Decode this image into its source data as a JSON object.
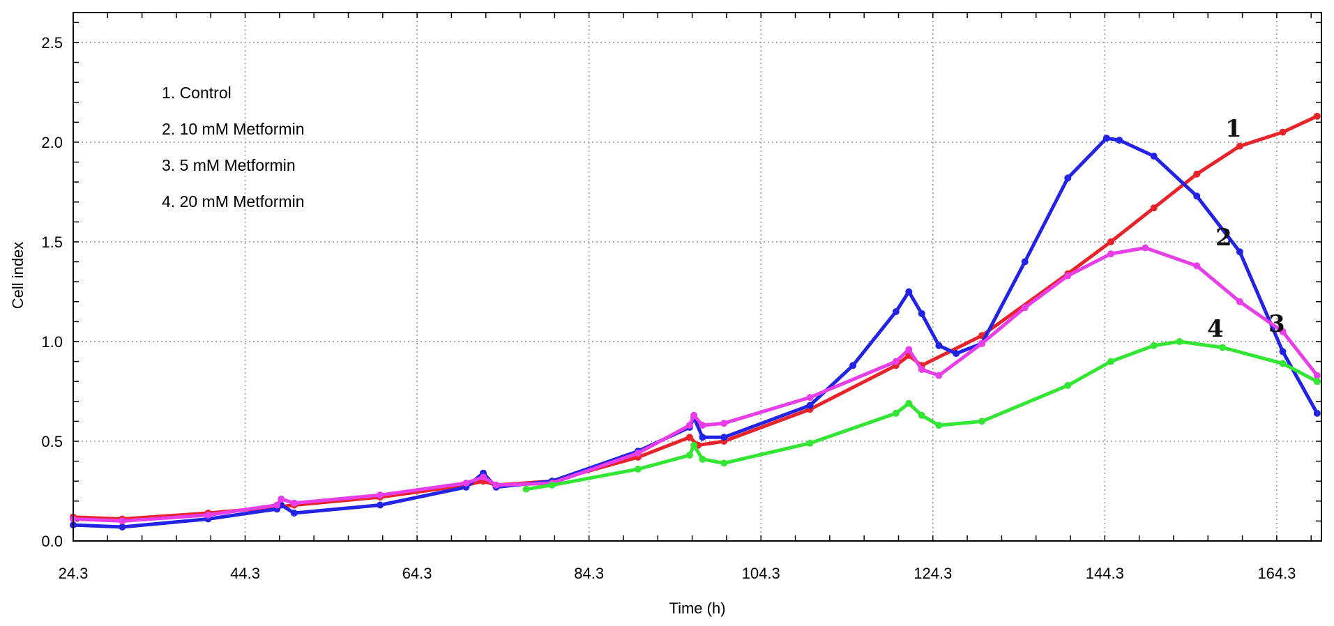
{
  "chart_data": {
    "type": "line",
    "title": "",
    "xlabel": "Time (h)",
    "ylabel": "Cell index",
    "xlim": [
      24.3,
      169.5
    ],
    "ylim": [
      0,
      2.65
    ],
    "grid": true,
    "x_ticks": [
      "24.3",
      "44.3",
      "64.3",
      "84.3",
      "104.3",
      "124.3",
      "144.3",
      "164.3"
    ],
    "y_ticks": [
      "0.0",
      "0.5",
      "1.0",
      "1.5",
      "2.0",
      "2.5"
    ],
    "legend": {
      "position": "top-left",
      "entries": [
        "1. Control",
        "2. 10 mM Metformin",
        "3. 5 mM Metformin",
        "4. 20 mM Metformin"
      ]
    },
    "series": [
      {
        "label": "1",
        "color": "#e8232a",
        "x": [
          24.3,
          30,
          40,
          48,
          50,
          60,
          70,
          72,
          73.5,
          80,
          90,
          96,
          97,
          100,
          110,
          120,
          121.5,
          123,
          130,
          140,
          145,
          150,
          155,
          160,
          165,
          169
        ],
        "y": [
          0.12,
          0.11,
          0.14,
          0.17,
          0.18,
          0.22,
          0.28,
          0.3,
          0.28,
          0.3,
          0.42,
          0.52,
          0.48,
          0.5,
          0.66,
          0.88,
          0.93,
          0.88,
          1.03,
          1.34,
          1.5,
          1.67,
          1.84,
          1.98,
          2.05,
          2.13
        ]
      },
      {
        "label": "2",
        "color": "#2323e6",
        "x": [
          24.3,
          30,
          40,
          48,
          48.5,
          50,
          60,
          70,
          72,
          73.5,
          80,
          90,
          96,
          96.5,
          97.5,
          100,
          110,
          115,
          120,
          121.5,
          123,
          125,
          127,
          130,
          135,
          140,
          144.5,
          146,
          150,
          155,
          160,
          165,
          169
        ],
        "y": [
          0.08,
          0.07,
          0.11,
          0.16,
          0.18,
          0.14,
          0.18,
          0.27,
          0.34,
          0.27,
          0.3,
          0.45,
          0.57,
          0.62,
          0.52,
          0.52,
          0.68,
          0.88,
          1.15,
          1.25,
          1.14,
          0.98,
          0.94,
          0.99,
          1.4,
          1.82,
          2.02,
          2.01,
          1.93,
          1.73,
          1.45,
          0.95,
          0.64
        ]
      },
      {
        "label": "3",
        "color": "#e83ee8",
        "x": [
          24.3,
          30,
          40,
          48,
          48.5,
          50,
          60,
          70,
          72,
          73.5,
          80,
          90,
          96,
          96.5,
          97.5,
          100,
          110,
          120,
          121.5,
          123,
          125,
          130,
          135,
          140,
          145,
          149,
          155,
          160,
          165,
          169
        ],
        "y": [
          0.11,
          0.1,
          0.13,
          0.18,
          0.21,
          0.19,
          0.23,
          0.29,
          0.32,
          0.28,
          0.29,
          0.44,
          0.58,
          0.63,
          0.58,
          0.59,
          0.72,
          0.9,
          0.96,
          0.86,
          0.83,
          0.99,
          1.17,
          1.33,
          1.44,
          1.47,
          1.38,
          1.2,
          1.05,
          0.83
        ]
      },
      {
        "label": "4",
        "color": "#33e633",
        "x": [
          77,
          80,
          90,
          96,
          96.5,
          97.5,
          100,
          110,
          120,
          121.5,
          123,
          125,
          130,
          140,
          145,
          150,
          153,
          158,
          165,
          169
        ],
        "y": [
          0.26,
          0.28,
          0.36,
          0.43,
          0.48,
          0.41,
          0.39,
          0.49,
          0.64,
          0.69,
          0.63,
          0.58,
          0.6,
          0.78,
          0.9,
          0.98,
          1.0,
          0.97,
          0.89,
          0.8
        ]
      }
    ]
  }
}
